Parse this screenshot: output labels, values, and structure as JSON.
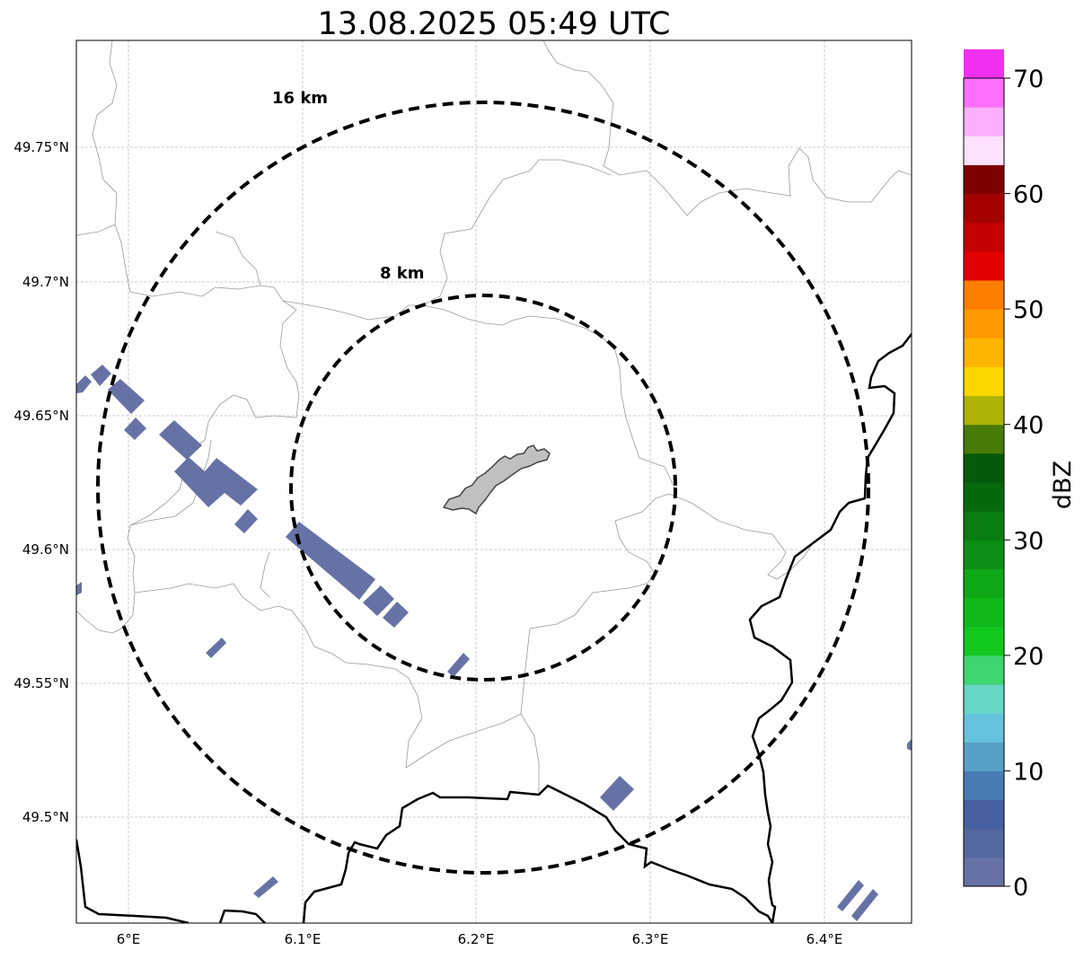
{
  "title": "13.08.2025 05:49 UTC",
  "map": {
    "x_ticks": [
      "6°E",
      "6.1°E",
      "6.2°E",
      "6.3°E",
      "6.4°E"
    ],
    "y_ticks": [
      "49.75°N",
      "49.7°N",
      "49.65°N",
      "49.6°N",
      "49.55°N",
      "49.5°N"
    ],
    "ring_labels": [
      "16 km",
      "8 km"
    ]
  },
  "colorbar": {
    "label": "dBZ",
    "tick_labels": [
      "0",
      "10",
      "20",
      "30",
      "40",
      "50",
      "60",
      "70"
    ],
    "min": 0,
    "max": 70,
    "step": 2.5,
    "colors": [
      "#6672a6",
      "#5567a0",
      "#4660a1",
      "#4a7cb3",
      "#56a0c8",
      "#66c3de",
      "#66d6c5",
      "#3ed66f",
      "#12c91e",
      "#10b81a",
      "#0fa816",
      "#0b8f14",
      "#087d10",
      "#066a0d",
      "#045a08",
      "#477a06",
      "#adb307",
      "#fdd600",
      "#feb400",
      "#fe9a00",
      "#fe7f00",
      "#e20000",
      "#c50000",
      "#a50000",
      "#7d0000",
      "#fce2fd",
      "#fcb0fc",
      "#fd6efd",
      "#ef31ef"
    ]
  },
  "colors": {
    "echo": "#6672a6",
    "city_fill": "#c0c0c0",
    "border": "#000000",
    "admin_line": "#9a9a9a",
    "grid": "#bdbdbd"
  }
}
